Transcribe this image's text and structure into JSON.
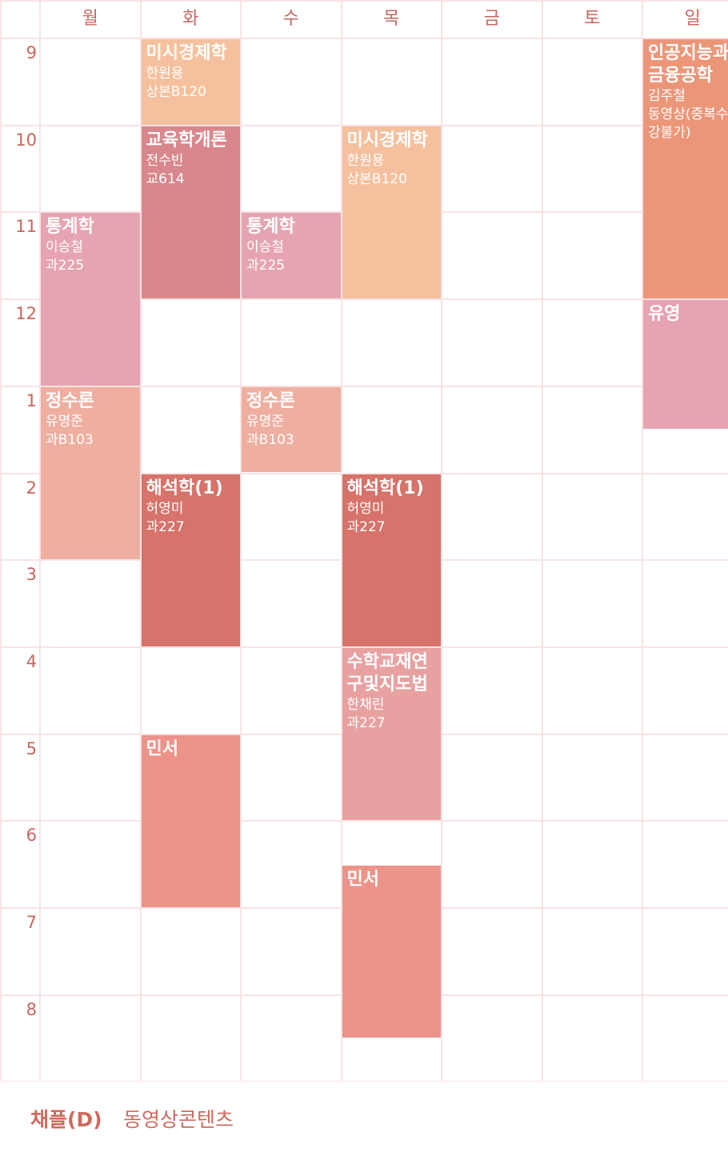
{
  "days": [
    "월",
    "화",
    "수",
    "목",
    "금",
    "토",
    "일"
  ],
  "hours": [
    "9",
    "10",
    "11",
    "12",
    "1",
    "2",
    "3",
    "4",
    "5",
    "6",
    "7",
    "8"
  ],
  "courses": [
    {
      "day": 1,
      "start": 0,
      "end": 1,
      "title": "미시경제학",
      "prof": "한원용",
      "room": "상본B120",
      "color": "#f5c09d"
    },
    {
      "day": 1,
      "start": 1,
      "end": 3,
      "title": "교육학개론",
      "prof": "전수빈",
      "room": "교614",
      "color": "#d9878c"
    },
    {
      "day": 3,
      "start": 1,
      "end": 3,
      "title": "미시경제학",
      "prof": "한원용",
      "room": "상본B120",
      "color": "#f5c09d"
    },
    {
      "day": 0,
      "start": 2,
      "end": 4,
      "title": "통계학",
      "prof": "이승철",
      "room": "과225",
      "color": "#e6a4b0"
    },
    {
      "day": 2,
      "start": 2,
      "end": 3,
      "title": "통계학",
      "prof": "이승철",
      "room": "과225",
      "color": "#e6a4b0"
    },
    {
      "day": 6,
      "start": 0,
      "end": 3,
      "title": "인공지능과\n금융공학",
      "prof": "김주철",
      "room": "동영상(중복수\n강불가)",
      "color": "#ec9679"
    },
    {
      "day": 6,
      "start": 3,
      "end": 4.5,
      "title": "유영",
      "prof": "",
      "room": "",
      "color": "#e6a4b0"
    },
    {
      "day": 0,
      "start": 4,
      "end": 6,
      "title": "정수론",
      "prof": "유명준",
      "room": "과B103",
      "color": "#efafa0"
    },
    {
      "day": 2,
      "start": 4,
      "end": 5,
      "title": "정수론",
      "prof": "유명준",
      "room": "과B103",
      "color": "#efafa0"
    },
    {
      "day": 1,
      "start": 5,
      "end": 7,
      "title": "해석학(1)",
      "prof": "허영미",
      "room": "과227",
      "color": "#d6736a"
    },
    {
      "day": 3,
      "start": 5,
      "end": 7,
      "title": "해석학(1)",
      "prof": "허영미",
      "room": "과227",
      "color": "#d6736a"
    },
    {
      "day": 3,
      "start": 7,
      "end": 9,
      "title": "수학교재연\n구및지도법",
      "prof": "한채린",
      "room": "과227",
      "color": "#e8a1a1"
    },
    {
      "day": 1,
      "start": 8,
      "end": 10,
      "title": "민서",
      "prof": "",
      "room": "",
      "color": "#ec938a"
    },
    {
      "day": 3,
      "start": 9.5,
      "end": 11.5,
      "title": "민서",
      "prof": "",
      "room": "",
      "color": "#ec938a"
    }
  ],
  "footer": {
    "item1": "채플(D)",
    "item2": "동영상콘텐츠"
  }
}
